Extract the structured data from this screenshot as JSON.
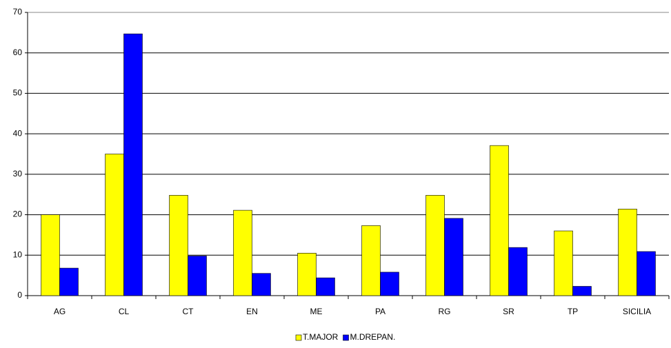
{
  "chart_data": {
    "type": "bar",
    "categories": [
      "AG",
      "CL",
      "CT",
      "EN",
      "ME",
      "PA",
      "RG",
      "SR",
      "TP",
      "SICILIA"
    ],
    "series": [
      {
        "name": "T.MAJOR",
        "color": "#ffff00",
        "values": [
          20,
          35,
          24.8,
          21.1,
          10.5,
          17.3,
          24.8,
          37.1,
          16,
          21.4
        ]
      },
      {
        "name": "M.DREPAN.",
        "color": "#0000ff",
        "values": [
          6.8,
          64.7,
          9.8,
          5.5,
          4.4,
          5.8,
          19.1,
          11.9,
          2.3,
          10.9
        ]
      }
    ],
    "ylim": [
      0,
      70
    ],
    "yticks": [
      0,
      10,
      20,
      30,
      40,
      50,
      60,
      70
    ],
    "grid": true,
    "legend": "bottom"
  }
}
